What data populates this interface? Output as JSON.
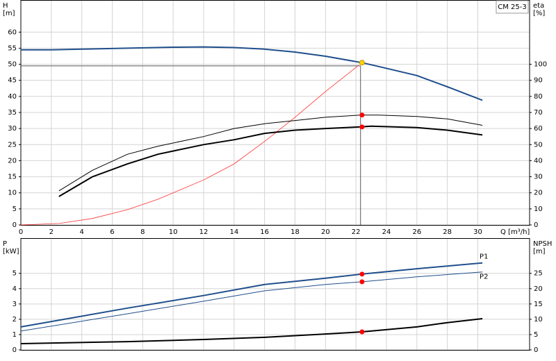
{
  "chart_data": [
    {
      "type": "line",
      "title": "CM 25-3",
      "x_label": "Q [m³/h]",
      "y_label": "H",
      "y_unit": "[m]",
      "y2_label": "eta",
      "y2_unit": "[%]",
      "xlim": [
        0,
        33.4
      ],
      "xticks": [
        0,
        2,
        4,
        6,
        8,
        10,
        12,
        14,
        16,
        18,
        20,
        22,
        24,
        26,
        28,
        30
      ],
      "ylim": [
        0,
        70
      ],
      "yticks": [
        0,
        5,
        10,
        15,
        20,
        25,
        30,
        35,
        40,
        45,
        50,
        55,
        60
      ],
      "y2lim": [
        0,
        140
      ],
      "y2ticks": [
        0,
        10,
        20,
        30,
        40,
        50,
        60,
        70,
        80,
        90,
        100
      ],
      "grid": true,
      "series": [
        {
          "color": "#1f4e8c",
          "width": 2,
          "x": [
            0,
            2,
            4,
            7,
            10,
            12,
            14,
            16,
            18,
            20,
            22.4,
            23.5,
            26,
            28,
            30.3
          ],
          "values": [
            54.5,
            54.5,
            54.7,
            55,
            55.3,
            55.4,
            55.2,
            54.7,
            53.8,
            52.5,
            50.5,
            49.3,
            46.5,
            43,
            38.8
          ]
        },
        {
          "color": "#ff3030",
          "width": 0.8,
          "axis": "y2",
          "x": [
            0,
            2.5,
            4.7,
            7,
            9,
            12,
            14,
            16,
            18,
            20,
            22.2
          ],
          "values": [
            0,
            0.9,
            4,
            9.5,
            16,
            28,
            38,
            52,
            67,
            83,
            99.5
          ]
        },
        {
          "color": "#000000",
          "width": 1,
          "axis": "y2",
          "x": [
            2.5,
            4.7,
            7,
            9,
            12,
            14,
            16,
            18,
            20,
            22.3,
            23.5,
            26,
            28,
            30.3
          ],
          "values": [
            21.2,
            34,
            44,
            49,
            55,
            60,
            63,
            65,
            67,
            68.4,
            68.4,
            67.5,
            66,
            62
          ]
        },
        {
          "color": "#000000",
          "width": 2,
          "axis": "y2",
          "x": [
            2.5,
            4.7,
            7,
            9,
            12,
            14,
            16,
            18,
            20,
            22.3,
            23,
            26,
            28,
            30.3
          ],
          "values": [
            17.7,
            30,
            38,
            44,
            50,
            53,
            57,
            59,
            60,
            61,
            61.5,
            60.6,
            59,
            56
          ]
        }
      ],
      "guide": {
        "x": 22.3,
        "y": 49.5
      },
      "markers": [
        {
          "x": 22.4,
          "y": 50.5,
          "color": "#ffd700"
        },
        {
          "x": 22.4,
          "y": 68.4,
          "color": "#ff0000",
          "axis": "y2"
        },
        {
          "x": 22.4,
          "y": 61,
          "color": "#ff0000",
          "axis": "y2"
        }
      ]
    },
    {
      "type": "line",
      "y_label": "P",
      "y_unit": "[kW]",
      "y2_label": "NPSH",
      "y2_unit": "[m]",
      "xlim": [
        0,
        33.4
      ],
      "ylim": [
        0,
        7.3
      ],
      "yticks": [
        0,
        1,
        2,
        3,
        4,
        5
      ],
      "y2lim": [
        0,
        36.5
      ],
      "y2ticks": [
        0,
        5,
        10,
        15,
        20,
        25
      ],
      "grid": true,
      "series": [
        {
          "name": "P1",
          "color": "#1f4e8c",
          "width": 2,
          "x": [
            0,
            7,
            12,
            16,
            20,
            22.4,
            26,
            30.3
          ],
          "values": [
            1.5,
            2.73,
            3.55,
            4.27,
            4.68,
            4.95,
            5.3,
            5.68
          ]
        },
        {
          "name": "P2",
          "color": "#1f4e8c",
          "width": 1,
          "x": [
            0,
            7,
            12,
            16,
            20,
            22.4,
            26,
            30.3
          ],
          "values": [
            1.23,
            2.36,
            3.18,
            3.86,
            4.27,
            4.45,
            4.77,
            5.09
          ]
        },
        {
          "color": "#000000",
          "width": 2,
          "axis": "y2",
          "x": [
            0,
            7,
            12,
            16,
            20,
            22.4,
            26,
            28,
            30.3
          ],
          "values": [
            2.05,
            2.7,
            3.4,
            4.1,
            5.2,
            5.9,
            7.5,
            8.9,
            10.2
          ]
        }
      ],
      "markers": [
        {
          "x": 22.4,
          "y": 4.95,
          "color": "#ff0000"
        },
        {
          "x": 22.4,
          "y": 4.45,
          "color": "#ff0000"
        },
        {
          "x": 22.4,
          "y": 5.9,
          "color": "#ff0000",
          "axis": "y2"
        }
      ]
    }
  ]
}
